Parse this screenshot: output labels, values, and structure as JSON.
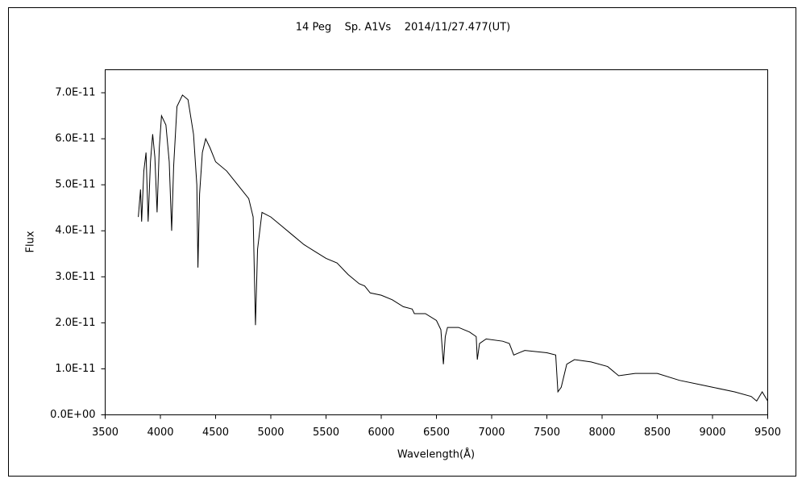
{
  "chart_data": {
    "type": "line",
    "title": "14 Peg    Sp. A1Vs    2014/11/27.477(UT)",
    "x_label": "Wavelength(Å)",
    "y_label": "Flux",
    "x": [
      3800,
      3820,
      3830,
      3850,
      3870,
      3889,
      3910,
      3930,
      3950,
      3970,
      3990,
      4010,
      4050,
      4080,
      4102,
      4120,
      4150,
      4200,
      4250,
      4300,
      4330,
      4340,
      4355,
      4380,
      4410,
      4450,
      4500,
      4600,
      4700,
      4800,
      4840,
      4861,
      4880,
      4920,
      5000,
      5100,
      5200,
      5300,
      5400,
      5500,
      5600,
      5700,
      5800,
      5850,
      5900,
      6000,
      6100,
      6200,
      6280,
      6300,
      6400,
      6500,
      6540,
      6563,
      6580,
      6600,
      6700,
      6800,
      6860,
      6870,
      6890,
      6950,
      7100,
      7160,
      7200,
      7250,
      7300,
      7500,
      7580,
      7600,
      7630,
      7680,
      7750,
      7900,
      8050,
      8150,
      8300,
      8500,
      8700,
      8900,
      9000,
      9200,
      9350,
      9400,
      9450,
      9500
    ],
    "series": [
      {
        "color": "#000000",
        "values": [
          4.3e-11,
          4.9e-11,
          4.2e-11,
          5.3e-11,
          5.7e-11,
          4.2e-11,
          5.5e-11,
          6.1e-11,
          5.6e-11,
          4.4e-11,
          5.8e-11,
          6.5e-11,
          6.3e-11,
          5.5e-11,
          4e-11,
          5.4e-11,
          6.7e-11,
          6.95e-11,
          6.85e-11,
          6.1e-11,
          5e-11,
          3.2e-11,
          4.8e-11,
          5.7e-11,
          6e-11,
          5.8e-11,
          5.5e-11,
          5.3e-11,
          5e-11,
          4.7e-11,
          4.3e-11,
          1.95e-11,
          3.6e-11,
          4.4e-11,
          4.3e-11,
          4.1e-11,
          3.9e-11,
          3.7e-11,
          3.55e-11,
          3.4e-11,
          3.3e-11,
          3.05e-11,
          2.85e-11,
          2.8e-11,
          2.65e-11,
          2.6e-11,
          2.5e-11,
          2.35e-11,
          2.3e-11,
          2.2e-11,
          2.2e-11,
          2.05e-11,
          1.85e-11,
          1.1e-11,
          1.7e-11,
          1.9e-11,
          1.9e-11,
          1.8e-11,
          1.7e-11,
          1.2e-11,
          1.55e-11,
          1.65e-11,
          1.6e-11,
          1.55e-11,
          1.3e-11,
          1.35e-11,
          1.4e-11,
          1.35e-11,
          1.3e-11,
          5e-12,
          6e-12,
          1.1e-11,
          1.2e-11,
          1.15e-11,
          1.05e-11,
          8.5e-12,
          9e-12,
          9e-12,
          7.5e-12,
          6.5e-12,
          6e-12,
          5e-12,
          4e-12,
          3e-12,
          5e-12,
          3e-12
        ]
      }
    ],
    "xlim": [
      3500,
      9500
    ],
    "xticks": [
      3500,
      4000,
      4500,
      5000,
      5500,
      6000,
      6500,
      7000,
      7500,
      8000,
      8500,
      9000,
      9500
    ],
    "ylim": [
      0,
      7.5e-11
    ],
    "yticks": [
      {
        "value": 0,
        "label": "0.0E+00"
      },
      {
        "value": 1e-11,
        "label": "1.0E-11"
      },
      {
        "value": 2e-11,
        "label": "2.0E-11"
      },
      {
        "value": 3e-11,
        "label": "3.0E-11"
      },
      {
        "value": 4e-11,
        "label": "4.0E-11"
      },
      {
        "value": 5e-11,
        "label": "5.0E-11"
      },
      {
        "value": 6e-11,
        "label": "6.0E-11"
      },
      {
        "value": 7e-11,
        "label": "7.0E-11"
      }
    ]
  }
}
